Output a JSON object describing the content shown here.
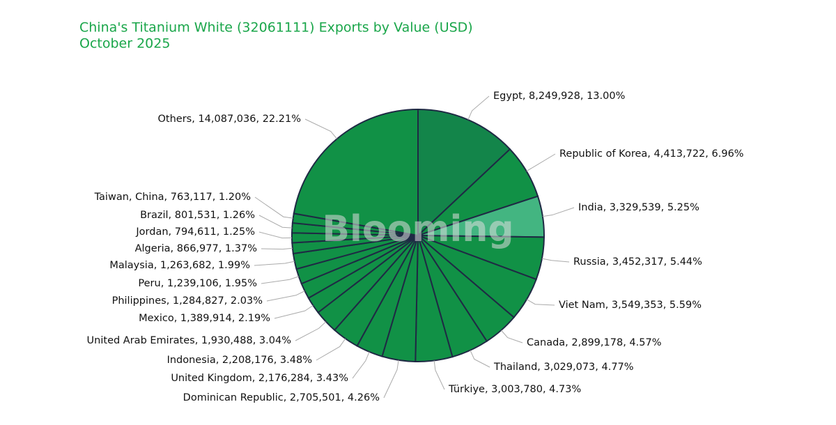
{
  "chart_data": {
    "type": "pie",
    "title": "China's Titanium White (32061111) Exports by Value (USD)",
    "subtitle": "October 2025",
    "watermark": "Blooming",
    "values": [
      8249928,
      4413722,
      3329539,
      3452317,
      3549353,
      2899178,
      3029073,
      3003780,
      2705501,
      2176284,
      2208176,
      1930488,
      1389914,
      1284827,
      1239106,
      1263682,
      866977,
      794611,
      801531,
      763117,
      14087036
    ],
    "value_labels": [
      "Egypt, 8,249,928, 13.00%",
      "Republic of Korea, 4,413,722, 6.96%",
      "India, 3,329,539, 5.25%",
      "Russia, 3,452,317, 5.44%",
      "Viet Nam, 3,549,353, 5.59%",
      "Canada, 2,899,178, 4.57%",
      "Thailand, 3,029,073, 4.77%",
      "Türkiye, 3,003,780, 4.73%",
      "Dominican Republic, 2,705,501, 4.26%",
      "United Kingdom, 2,176,284, 3.43%",
      "Indonesia, 2,208,176, 3.48%",
      "United Arab Emirates, 1,930,488, 3.04%",
      "Mexico, 1,389,914, 2.19%",
      "Philippines, 1,284,827, 2.03%",
      "Peru, 1,239,106, 1.95%",
      "Malaysia, 1,263,682, 1.99%",
      "Algeria, 866,977, 1.37%",
      "Jordan, 794,611, 1.25%",
      "Brazil, 801,531, 1.26%",
      "Taiwan,  China, 763,117, 1.20%",
      "Others, 14,087,036, 22.21%"
    ],
    "colors": [
      "#13854a",
      "#119146",
      "#43b581",
      "#119146",
      "#119146",
      "#119146",
      "#119146",
      "#119146",
      "#119146",
      "#119146",
      "#119146",
      "#119146",
      "#119146",
      "#119146",
      "#119146",
      "#119146",
      "#119146",
      "#119146",
      "#119146",
      "#119146",
      "#119146"
    ],
    "edge_color": "#1f2a44"
  }
}
